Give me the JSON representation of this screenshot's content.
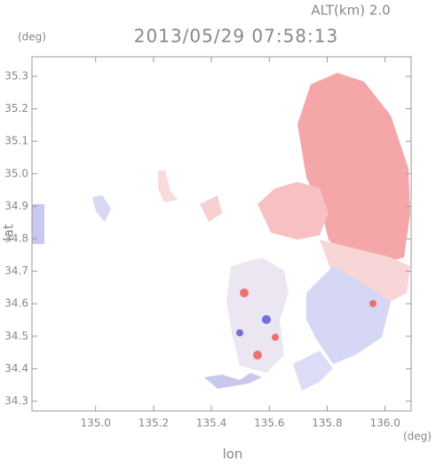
{
  "chart_data": {
    "type": "map",
    "title": "2013/05/29 07:58:13",
    "altitude_label": "ALT(km) 2.0",
    "x_unit": "(deg)",
    "y_unit": "(deg)",
    "x_label": "lon",
    "y_label": "lat",
    "xlim": [
      134.78,
      136.09
    ],
    "ylim": [
      34.27,
      35.36
    ],
    "xticks": [
      {
        "value": 135,
        "label": "135.0"
      },
      135.2,
      135.4,
      135.6,
      135.8,
      {
        "value": 136,
        "label": "136.0"
      }
    ],
    "yticks": [
      34.3,
      34.4,
      34.5,
      34.6,
      34.7,
      34.8,
      34.9,
      {
        "value": 35,
        "label": "35.0"
      },
      35.1,
      35.2,
      35.3
    ]
  }
}
